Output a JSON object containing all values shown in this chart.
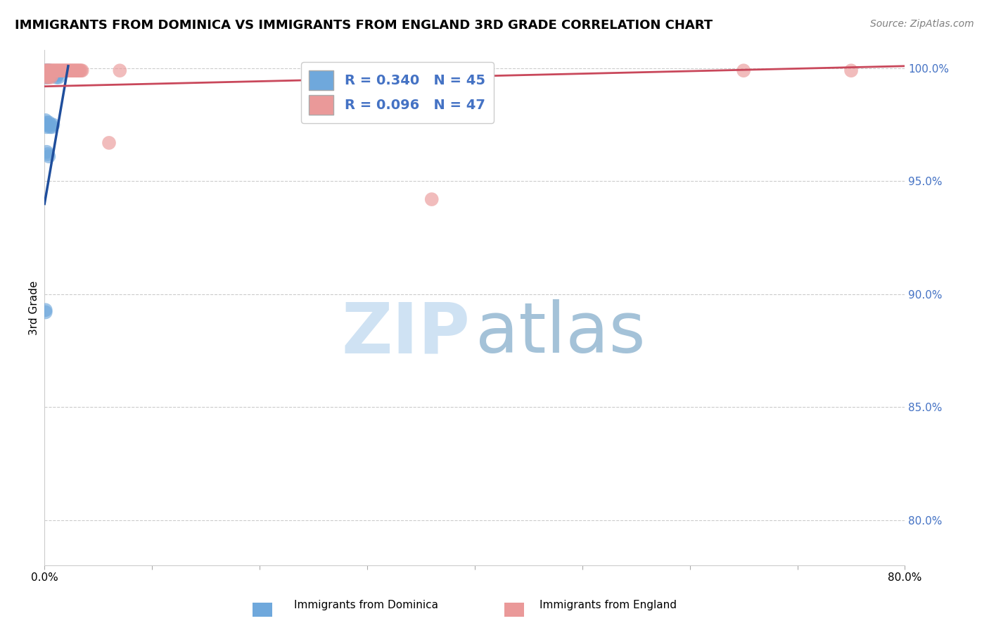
{
  "title": "IMMIGRANTS FROM DOMINICA VS IMMIGRANTS FROM ENGLAND 3RD GRADE CORRELATION CHART",
  "source": "Source: ZipAtlas.com",
  "ylabel": "3rd Grade",
  "ylabel_right_values": [
    1.0,
    0.95,
    0.9,
    0.85,
    0.8
  ],
  "xmin": 0.0,
  "xmax": 0.8,
  "ymin": 0.78,
  "ymax": 1.008,
  "dominica_color": "#6fa8dc",
  "england_color": "#ea9999",
  "dominica_line_color": "#1f4e9c",
  "england_line_color": "#c9485b",
  "R_dominica": 0.34,
  "N_dominica": 45,
  "R_england": 0.096,
  "N_england": 47,
  "dom_x": [
    0.001,
    0.001,
    0.001,
    0.001,
    0.002,
    0.002,
    0.002,
    0.003,
    0.003,
    0.003,
    0.003,
    0.004,
    0.004,
    0.004,
    0.005,
    0.005,
    0.005,
    0.006,
    0.006,
    0.007,
    0.007,
    0.008,
    0.008,
    0.009,
    0.009,
    0.01,
    0.01,
    0.011,
    0.012,
    0.013,
    0.001,
    0.001,
    0.002,
    0.002,
    0.003,
    0.004,
    0.005,
    0.006,
    0.007,
    0.008,
    0.002,
    0.003,
    0.004,
    0.001,
    0.001
  ],
  "dom_y": [
    0.999,
    0.998,
    0.997,
    0.996,
    0.999,
    0.998,
    0.997,
    0.999,
    0.998,
    0.997,
    0.996,
    0.999,
    0.998,
    0.997,
    0.999,
    0.998,
    0.997,
    0.998,
    0.997,
    0.998,
    0.997,
    0.998,
    0.997,
    0.998,
    0.997,
    0.998,
    0.997,
    0.996,
    0.997,
    0.996,
    0.977,
    0.975,
    0.976,
    0.974,
    0.975,
    0.976,
    0.974,
    0.975,
    0.974,
    0.975,
    0.963,
    0.962,
    0.961,
    0.893,
    0.892
  ],
  "eng_x": [
    0.001,
    0.002,
    0.003,
    0.004,
    0.005,
    0.006,
    0.007,
    0.008,
    0.009,
    0.01,
    0.011,
    0.012,
    0.013,
    0.014,
    0.015,
    0.016,
    0.017,
    0.018,
    0.019,
    0.02,
    0.021,
    0.022,
    0.023,
    0.024,
    0.025,
    0.026,
    0.027,
    0.028,
    0.029,
    0.03,
    0.031,
    0.032,
    0.033,
    0.034,
    0.035,
    0.001,
    0.002,
    0.003,
    0.004,
    0.005,
    0.006,
    0.007,
    0.06,
    0.07,
    0.36,
    0.65,
    0.75
  ],
  "eng_y": [
    0.999,
    0.999,
    0.999,
    0.999,
    0.999,
    0.999,
    0.999,
    0.999,
    0.999,
    0.999,
    0.999,
    0.999,
    0.999,
    0.999,
    0.999,
    0.999,
    0.999,
    0.999,
    0.999,
    0.999,
    0.999,
    0.999,
    0.999,
    0.999,
    0.999,
    0.999,
    0.999,
    0.999,
    0.999,
    0.999,
    0.999,
    0.999,
    0.999,
    0.999,
    0.999,
    0.997,
    0.996,
    0.997,
    0.996,
    0.997,
    0.996,
    0.997,
    0.967,
    0.999,
    0.942,
    0.999,
    0.999
  ],
  "dom_line_x": [
    0.0,
    0.022
  ],
  "dom_line_y": [
    0.94,
    1.001
  ],
  "eng_line_x": [
    0.0,
    0.8
  ],
  "eng_line_y": [
    0.992,
    1.001
  ]
}
